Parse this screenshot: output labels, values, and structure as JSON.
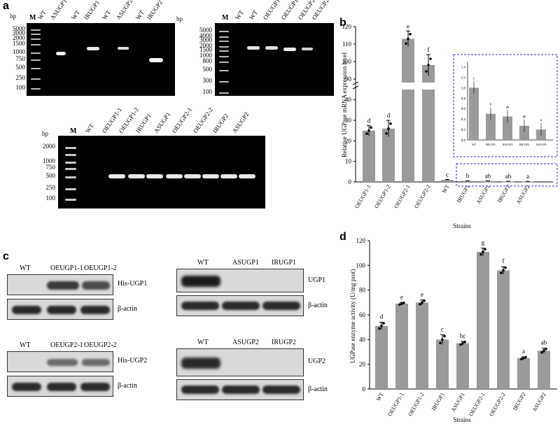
{
  "panels": {
    "a": "a",
    "b": "b",
    "c": "c",
    "d": "d"
  },
  "gel1": {
    "bp_label": "bp",
    "ladder": [
      "5000",
      "3000",
      "2000",
      "1500",
      "1000",
      "750",
      "500",
      "250",
      "100"
    ],
    "lanes": [
      "M",
      "WT",
      "ASUGP1",
      "WT",
      "IRUGP1",
      "WT",
      "ASUGP2",
      "WT",
      "IRUGP2"
    ]
  },
  "gel2": {
    "bp_label": "bp",
    "ladder": [
      "5000",
      "4000",
      "3000",
      "2000",
      "1500",
      "1000",
      "800",
      "500",
      "300",
      "100"
    ],
    "lanes": [
      "M",
      "WT",
      "WT",
      "OEUGP1-1",
      "OEUGP1-2",
      "OEUGP2-1",
      "OEUGP2-2"
    ]
  },
  "gel3": {
    "bp_label": "bp",
    "ladder": [
      "2000",
      "1000",
      "750",
      "500",
      "250",
      "100"
    ],
    "lanes": [
      "M",
      "WT",
      "OEUGP1-1",
      "OEUGP1-2",
      "IRUGP1",
      "ASUGP1",
      "OEUGP2-1",
      "OEUGP2-2",
      "IRUGP2",
      "ASUGP2"
    ]
  },
  "blots": {
    "c1": {
      "headers": [
        "WT",
        "OEUGP1-1",
        "OEUGP1-2"
      ],
      "label_top": "His-UGP1",
      "label_bottom": "β-actin"
    },
    "c2": {
      "headers": [
        "WT",
        "ASUGP1",
        "IRUGP1"
      ],
      "label_top": "UGP1",
      "label_bottom": "β-actin"
    },
    "c3": {
      "headers": [
        "WT",
        "OEUGP2-1",
        "OEUGP2-2"
      ],
      "label_top": "His-UGP2",
      "label_bottom": "β-actin"
    },
    "c4": {
      "headers": [
        "WT",
        "ASUGP2",
        "IRUGP2"
      ],
      "label_top": "UGP2",
      "label_bottom": "β-actin"
    }
  },
  "chart_data": [
    {
      "type": "bar",
      "panel": "b",
      "ylabel": "Relative UGPase mRNA expression level",
      "xlabel": "Strains",
      "categories": [
        "OEUGP1-1",
        "OEUGP1-2",
        "OEUGP2-1",
        "OEUGP2-2",
        "WT",
        "IRUGP1",
        "ASUGP1",
        "IRUGP2",
        "ASUGP2"
      ],
      "values": [
        25,
        26,
        113,
        98,
        1.0,
        0.5,
        0.45,
        0.27,
        0.2
      ],
      "letters": [
        "d",
        "d",
        "e",
        "f",
        "c",
        "b",
        "ab",
        "ab",
        "a"
      ],
      "yticks_lower": [
        "0",
        "10",
        "20",
        "30",
        "40"
      ],
      "yticks_upper": [
        "90",
        "100",
        "110",
        "120"
      ],
      "axis_break": [
        45,
        88
      ],
      "inset": {
        "categories": [
          "WT",
          "IRUGP1",
          "ASUGP1",
          "IRUGP2",
          "ASUGP2"
        ],
        "values": [
          1.0,
          0.5,
          0.45,
          0.27,
          0.2
        ],
        "letters": [
          "c",
          "b",
          "ab",
          "ab",
          "a"
        ],
        "yticks": [
          "0.0",
          "0.2",
          "0.4",
          "0.6",
          "0.8",
          "1.0",
          "1.2",
          "1.4"
        ],
        "ylim": [
          0,
          1.5
        ]
      }
    },
    {
      "type": "bar",
      "panel": "d",
      "ylabel": "UGPase enzyme activity (U/mg prot)",
      "xlabel": "Strains",
      "categories": [
        "WT",
        "OEUGP1-1",
        "OEUGP1-2",
        "IRUGP1",
        "ASUGP1",
        "OEUGP2-1",
        "OEUGP2-2",
        "IRUGP2",
        "ASUGP2"
      ],
      "values": [
        51,
        69,
        70,
        40,
        37,
        111,
        96,
        25,
        31
      ],
      "letters": [
        "d",
        "e",
        "e",
        "c",
        "bc",
        "g",
        "f",
        "a",
        "ab"
      ],
      "yticks": [
        "0",
        "20",
        "40",
        "60",
        "80",
        "100",
        "120"
      ],
      "ylim": [
        0,
        120
      ]
    }
  ]
}
